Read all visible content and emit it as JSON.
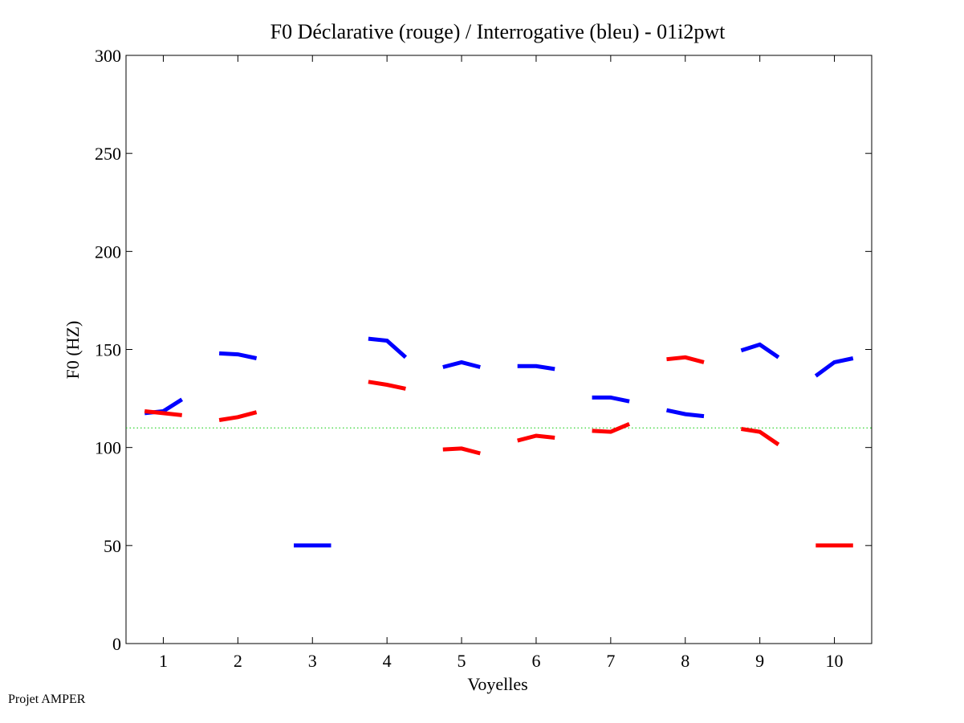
{
  "chart_data": {
    "type": "line",
    "title": "F0 Déclarative (rouge) / Interrogative (bleu) - 01i2pwt",
    "xlabel": "Voyelles",
    "ylabel": "F0 (HZ)",
    "xlim": [
      0.5,
      10.5
    ],
    "ylim": [
      0,
      300
    ],
    "xticks": [
      "1",
      "2",
      "3",
      "4",
      "5",
      "6",
      "7",
      "8",
      "9",
      "10"
    ],
    "yticks": [
      "0",
      "50",
      "100",
      "150",
      "200",
      "250",
      "300"
    ],
    "reference_line": {
      "y": 110,
      "color": "#00cc00",
      "style": "dotted"
    },
    "series": [
      {
        "name": "Interrogative (bleu)",
        "color": "#0000ff",
        "segments": [
          {
            "vowel": 1,
            "points": [
              [
                0.75,
                117.5
              ],
              [
                1.0,
                118.5
              ],
              [
                1.25,
                124.5
              ]
            ]
          },
          {
            "vowel": 2,
            "points": [
              [
                1.75,
                148
              ],
              [
                2.0,
                147.5
              ],
              [
                2.25,
                145.5
              ]
            ]
          },
          {
            "vowel": 3,
            "points": [
              [
                2.75,
                50
              ],
              [
                3.0,
                50
              ],
              [
                3.25,
                50
              ]
            ]
          },
          {
            "vowel": 4,
            "points": [
              [
                3.75,
                155.5
              ],
              [
                4.0,
                154.5
              ],
              [
                4.25,
                146
              ]
            ]
          },
          {
            "vowel": 5,
            "points": [
              [
                4.75,
                141
              ],
              [
                5.0,
                143.5
              ],
              [
                5.25,
                141
              ]
            ]
          },
          {
            "vowel": 6,
            "points": [
              [
                5.75,
                141.5
              ],
              [
                6.0,
                141.5
              ],
              [
                6.25,
                140
              ]
            ]
          },
          {
            "vowel": 7,
            "points": [
              [
                6.75,
                125.5
              ],
              [
                7.0,
                125.5
              ],
              [
                7.25,
                123.5
              ]
            ]
          },
          {
            "vowel": 8,
            "points": [
              [
                7.75,
                119
              ],
              [
                8.0,
                117
              ],
              [
                8.25,
                116
              ]
            ]
          },
          {
            "vowel": 9,
            "points": [
              [
                8.75,
                149.5
              ],
              [
                9.0,
                152.5
              ],
              [
                9.25,
                146
              ]
            ]
          },
          {
            "vowel": 10,
            "points": [
              [
                9.75,
                136.5
              ],
              [
                10.0,
                143.5
              ],
              [
                10.25,
                145.5
              ]
            ]
          }
        ]
      },
      {
        "name": "Déclarative (rouge)",
        "color": "#ff0000",
        "segments": [
          {
            "vowel": 1,
            "points": [
              [
                0.75,
                118.5
              ],
              [
                1.0,
                117.5
              ],
              [
                1.25,
                116.5
              ]
            ]
          },
          {
            "vowel": 2,
            "points": [
              [
                1.75,
                114
              ],
              [
                2.0,
                115.5
              ],
              [
                2.25,
                118
              ]
            ]
          },
          {
            "vowel": 4,
            "points": [
              [
                3.75,
                133.5
              ],
              [
                4.0,
                132
              ],
              [
                4.25,
                130
              ]
            ]
          },
          {
            "vowel": 5,
            "points": [
              [
                4.75,
                99
              ],
              [
                5.0,
                99.5
              ],
              [
                5.25,
                97
              ]
            ]
          },
          {
            "vowel": 6,
            "points": [
              [
                5.75,
                103.5
              ],
              [
                6.0,
                106
              ],
              [
                6.25,
                105
              ]
            ]
          },
          {
            "vowel": 7,
            "points": [
              [
                6.75,
                108.5
              ],
              [
                7.0,
                108
              ],
              [
                7.25,
                112
              ]
            ]
          },
          {
            "vowel": 8,
            "points": [
              [
                7.75,
                145
              ],
              [
                8.0,
                146
              ],
              [
                8.25,
                143.5
              ]
            ]
          },
          {
            "vowel": 9,
            "points": [
              [
                8.75,
                109.5
              ],
              [
                9.0,
                108
              ],
              [
                9.25,
                101.5
              ]
            ]
          },
          {
            "vowel": 10,
            "points": [
              [
                9.75,
                50
              ],
              [
                10.0,
                50
              ],
              [
                10.25,
                50
              ]
            ]
          }
        ]
      }
    ]
  },
  "footer": {
    "text": "Projet AMPER"
  }
}
